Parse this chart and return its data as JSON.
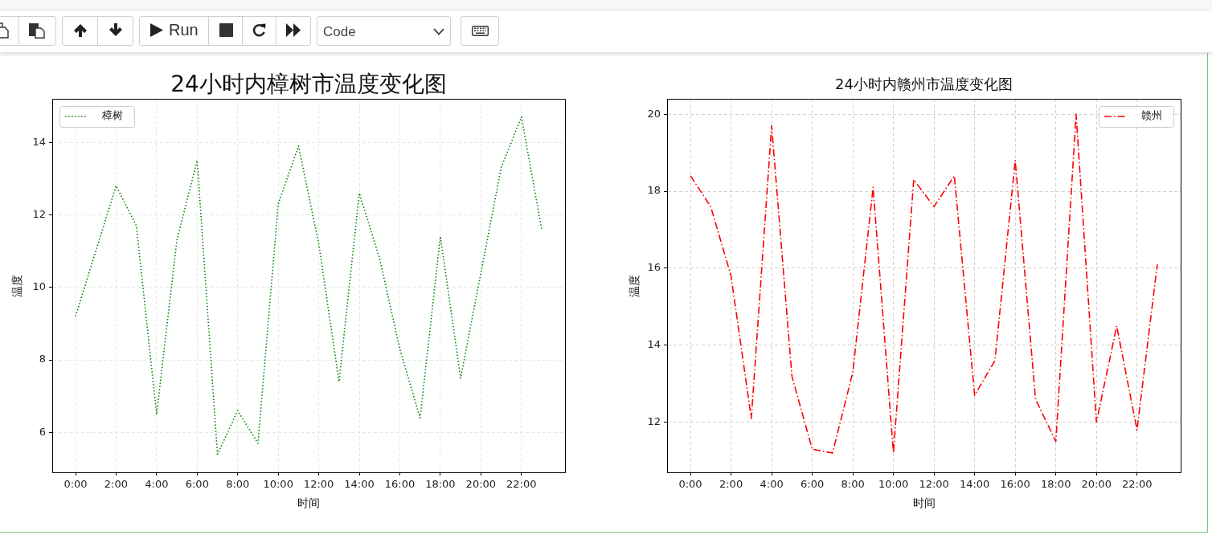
{
  "chart_data": [
    {
      "type": "other",
      "annotations": [
        "Run",
        "Code"
      ]
    },
    {
      "type": "line",
      "title": "24小时内樟树市温度变化图",
      "xlabel": "时间",
      "ylabel": "温度",
      "x": [
        0,
        1,
        2,
        3,
        4,
        5,
        6,
        7,
        8,
        9,
        10,
        11,
        12,
        13,
        14,
        15,
        16,
        17,
        18,
        19,
        20,
        21,
        22,
        23
      ],
      "series": [
        {
          "name": "樟树",
          "color": "#008000",
          "values": [
            9.2,
            11.0,
            12.8,
            11.7,
            6.5,
            11.3,
            13.5,
            5.4,
            6.6,
            5.7,
            12.3,
            13.9,
            11.2,
            7.4,
            12.6,
            10.8,
            8.3,
            6.4,
            11.4,
            7.5,
            10.4,
            13.3,
            14.7,
            11.6
          ]
        }
      ],
      "xlim": [
        -1.15,
        24.15
      ],
      "xticks": [
        {
          "value": 0,
          "label": "0:00"
        },
        {
          "value": 2,
          "label": "2:00"
        },
        {
          "value": 4,
          "label": "4:00"
        },
        {
          "value": 6,
          "label": "6:00"
        },
        {
          "value": 8,
          "label": "8:00"
        },
        {
          "value": 10,
          "label": "10:00"
        },
        {
          "value": 12,
          "label": "12:00"
        },
        {
          "value": 14,
          "label": "14:00"
        },
        {
          "value": 16,
          "label": "16:00"
        },
        {
          "value": 18,
          "label": "18:00"
        },
        {
          "value": 20,
          "label": "20:00"
        },
        {
          "value": 22,
          "label": "22:00"
        }
      ],
      "ylim": [
        4.9,
        15.2
      ],
      "yticks": [
        6,
        8,
        10,
        12,
        14
      ],
      "grid": true,
      "legend": "top left",
      "line_style": "dotted"
    },
    {
      "type": "line",
      "title": "24小时内赣州市温度变化图",
      "xlabel": "时间",
      "ylabel": "温度",
      "x": [
        0,
        1,
        2,
        3,
        4,
        5,
        6,
        7,
        8,
        9,
        10,
        11,
        12,
        13,
        14,
        15,
        16,
        17,
        18,
        19,
        20,
        21,
        22,
        23
      ],
      "series": [
        {
          "name": "赣州",
          "color": "#ff0000",
          "values": [
            18.4,
            17.6,
            15.8,
            12.1,
            19.7,
            13.2,
            11.3,
            11.2,
            13.3,
            18.1,
            11.2,
            18.3,
            17.6,
            18.4,
            12.7,
            13.6,
            18.8,
            12.6,
            11.5,
            20.0,
            12.0,
            14.5,
            11.8,
            16.1
          ]
        }
      ],
      "xlim": [
        -1.15,
        24.15
      ],
      "xticks": [
        {
          "value": 0,
          "label": "0:00"
        },
        {
          "value": 2,
          "label": "2:00"
        },
        {
          "value": 4,
          "label": "4:00"
        },
        {
          "value": 6,
          "label": "6:00"
        },
        {
          "value": 8,
          "label": "8:00"
        },
        {
          "value": 10,
          "label": "10:00"
        },
        {
          "value": 12,
          "label": "12:00"
        },
        {
          "value": 14,
          "label": "14:00"
        },
        {
          "value": 16,
          "label": "16:00"
        },
        {
          "value": 18,
          "label": "18:00"
        },
        {
          "value": 20,
          "label": "20:00"
        },
        {
          "value": 22,
          "label": "22:00"
        }
      ],
      "ylim": [
        10.7,
        20.4
      ],
      "yticks": [
        12,
        14,
        16,
        18,
        20
      ],
      "grid": true,
      "legend": "top right",
      "line_style": "dashdot"
    }
  ]
}
